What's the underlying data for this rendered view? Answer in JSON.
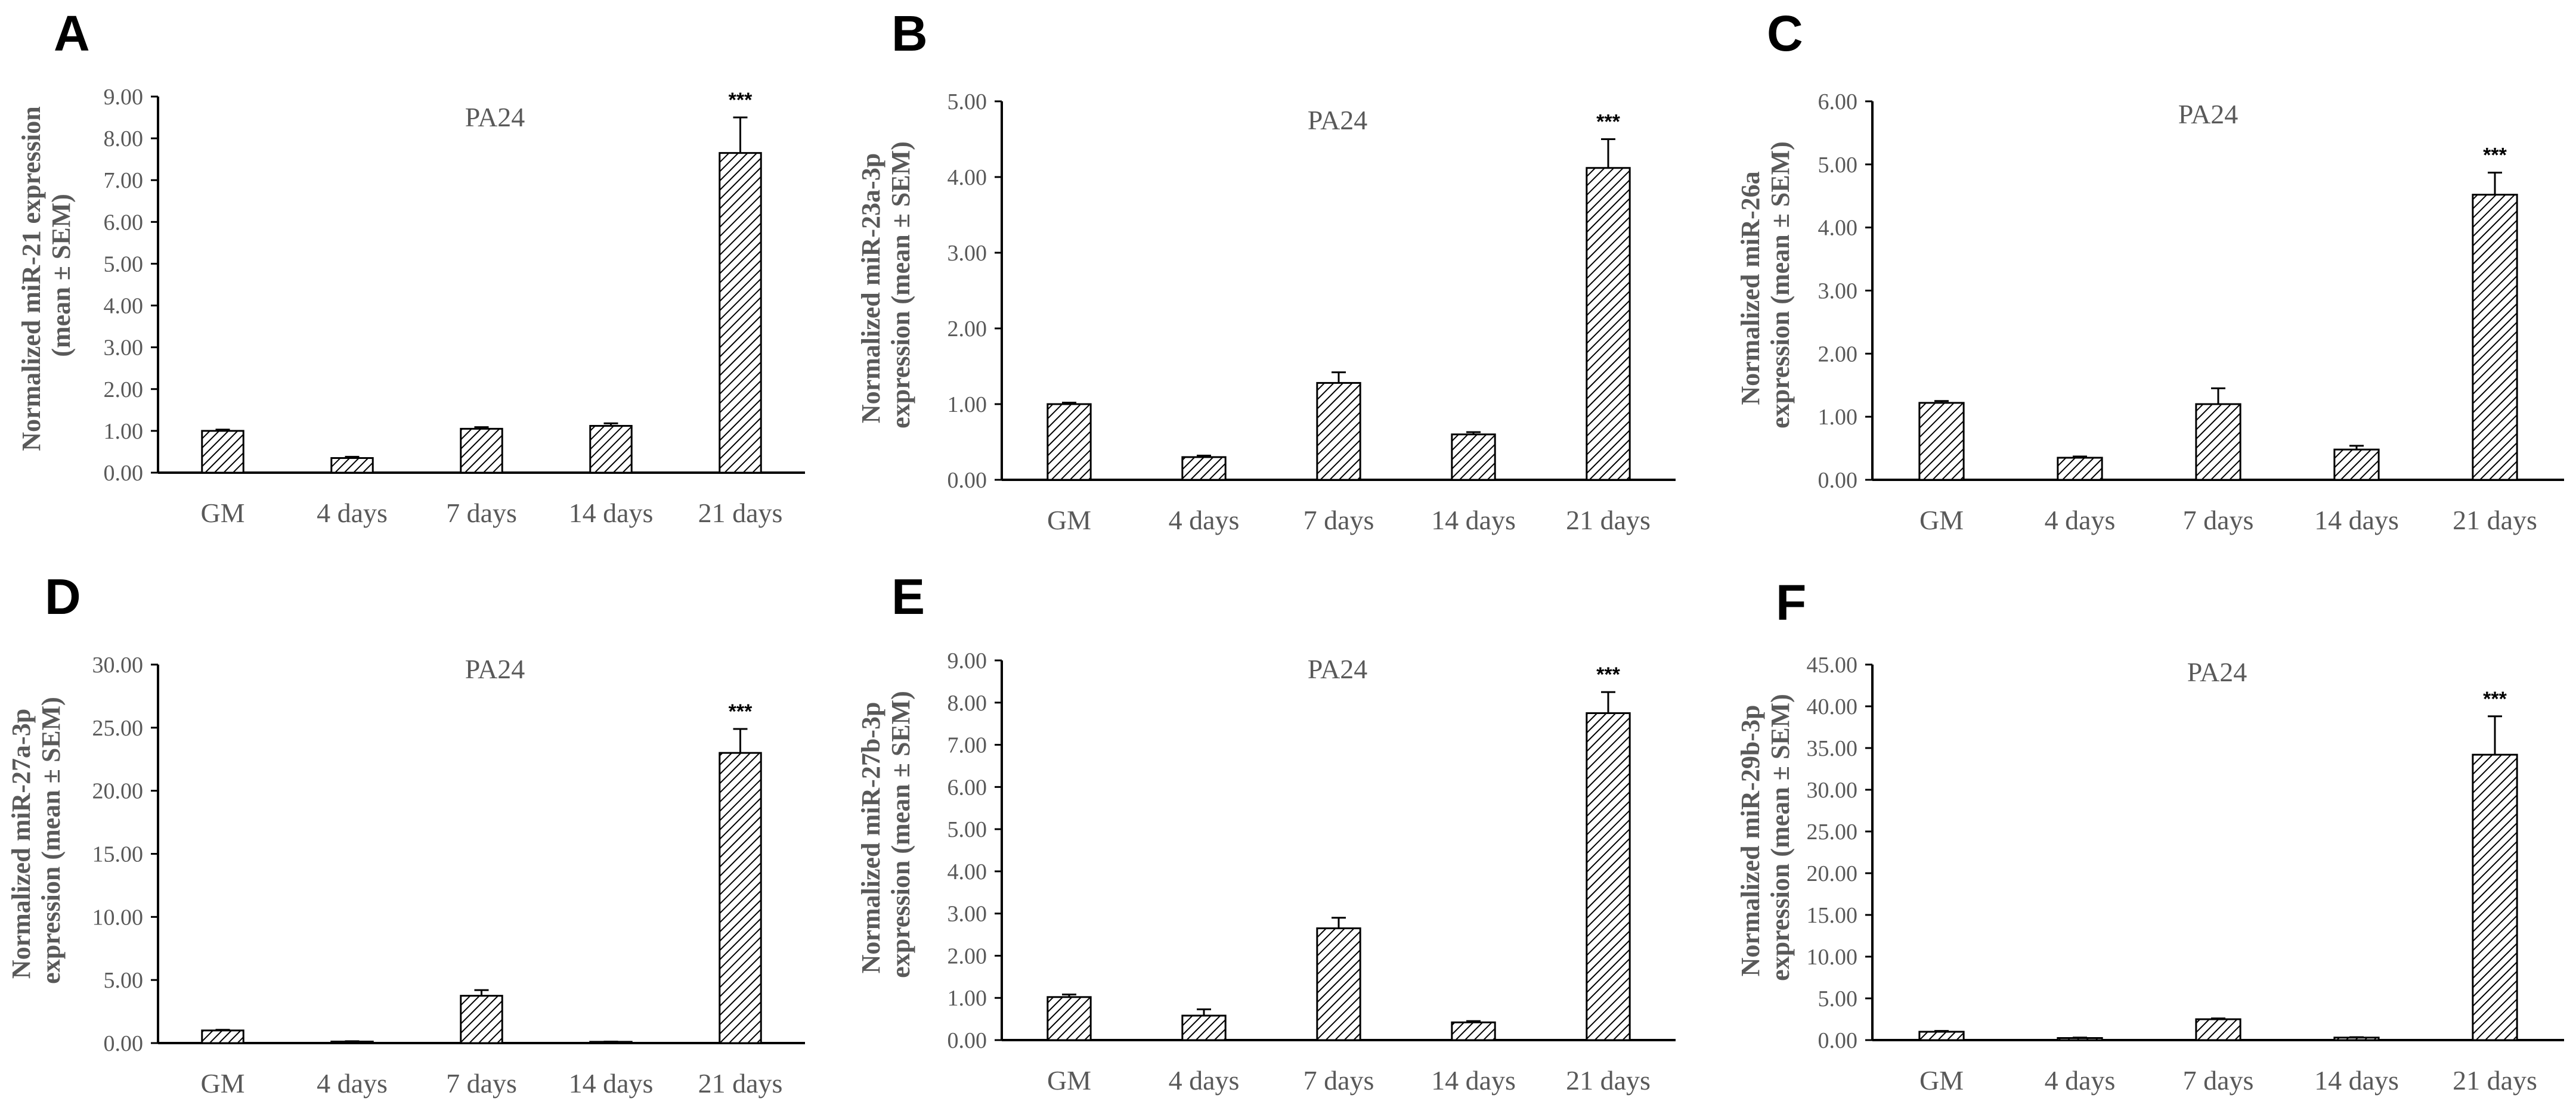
{
  "figure": {
    "panels": [
      "A",
      "B",
      "C",
      "D",
      "E",
      "F"
    ]
  },
  "chart_data": [
    {
      "panel": "A",
      "type": "bar",
      "title": "PA24",
      "ylabel_lines": [
        "Normalized miR-21 expression",
        "(mean ± SEM)"
      ],
      "xlabel": "",
      "categories": [
        "GM",
        "4 days",
        "7 days",
        "14 days",
        "21 days"
      ],
      "values": [
        1.0,
        0.35,
        1.05,
        1.12,
        7.65
      ],
      "errors": [
        0.03,
        0.03,
        0.04,
        0.06,
        0.85
      ],
      "significance": [
        "",
        "",
        "",
        "",
        "***"
      ],
      "ylim": [
        0,
        9
      ],
      "ytick_step": 1,
      "ytick_labels": [
        "0.00",
        "1.00",
        "2.00",
        "3.00",
        "4.00",
        "5.00",
        "6.00",
        "7.00",
        "8.00",
        "9.00"
      ],
      "grid": false
    },
    {
      "panel": "B",
      "type": "bar",
      "title": "PA24",
      "ylabel_lines": [
        "Normalized miR-23a-3p",
        "expression (mean ± SEM)"
      ],
      "xlabel": "",
      "categories": [
        "GM",
        "4 days",
        "7 days",
        "14 days",
        "21 days"
      ],
      "values": [
        1.0,
        0.3,
        1.28,
        0.6,
        4.12
      ],
      "errors": [
        0.02,
        0.02,
        0.14,
        0.03,
        0.38
      ],
      "significance": [
        "",
        "",
        "",
        "",
        "***"
      ],
      "ylim": [
        0,
        5
      ],
      "ytick_step": 1,
      "ytick_labels": [
        "0.00",
        "1.00",
        "2.00",
        "3.00",
        "4.00",
        "5.00"
      ],
      "grid": false
    },
    {
      "panel": "C",
      "type": "bar",
      "title": "PA24",
      "ylabel_lines": [
        "Normalized miR-26a",
        "expression (mean ± SEM)"
      ],
      "xlabel": "",
      "categories": [
        "GM",
        "4 days",
        "7 days",
        "14 days",
        "21 days"
      ],
      "values": [
        1.22,
        0.35,
        1.2,
        0.48,
        4.52
      ],
      "errors": [
        0.03,
        0.02,
        0.25,
        0.06,
        0.35
      ],
      "significance": [
        "",
        "",
        "",
        "",
        "***"
      ],
      "ylim": [
        0,
        6
      ],
      "ytick_step": 1,
      "ytick_labels": [
        "0.00",
        "1.00",
        "2.00",
        "3.00",
        "4.00",
        "5.00",
        "6.00"
      ],
      "grid": false
    },
    {
      "panel": "D",
      "type": "bar",
      "title": "PA24",
      "ylabel_lines": [
        "Normalized miR-27a-3p",
        "expression (mean ± SEM)"
      ],
      "xlabel": "",
      "categories": [
        "GM",
        "4 days",
        "7 days",
        "14 days",
        "21 days"
      ],
      "values": [
        1.0,
        0.12,
        3.75,
        0.1,
        23.0
      ],
      "errors": [
        0.05,
        0.03,
        0.45,
        0.02,
        1.9
      ],
      "significance": [
        "",
        "",
        "",
        "",
        "***"
      ],
      "ylim": [
        0,
        30
      ],
      "ytick_step": 5,
      "ytick_labels": [
        "0.00",
        "5.00",
        "10.00",
        "15.00",
        "20.00",
        "25.00",
        "30.00"
      ],
      "grid": false
    },
    {
      "panel": "E",
      "type": "bar",
      "title": "PA24",
      "ylabel_lines": [
        "Normalized miR-27b-3p",
        "expression (mean ± SEM)"
      ],
      "xlabel": "",
      "categories": [
        "GM",
        "4 days",
        "7 days",
        "14 days",
        "21 days"
      ],
      "values": [
        1.02,
        0.58,
        2.65,
        0.42,
        7.75
      ],
      "errors": [
        0.06,
        0.15,
        0.25,
        0.03,
        0.5
      ],
      "significance": [
        "",
        "",
        "",
        "",
        "***"
      ],
      "ylim": [
        0,
        9
      ],
      "ytick_step": 1,
      "ytick_labels": [
        "0.00",
        "1.00",
        "2.00",
        "3.00",
        "4.00",
        "5.00",
        "6.00",
        "7.00",
        "8.00",
        "9.00"
      ],
      "grid": false
    },
    {
      "panel": "F",
      "type": "bar",
      "title": "PA24",
      "ylabel_lines": [
        "Normalized miR-29b-3p",
        "expression (mean ± SEM)"
      ],
      "xlabel": "",
      "categories": [
        "GM",
        "4 days",
        "7 days",
        "14 days",
        "21 days"
      ],
      "values": [
        1.0,
        0.25,
        2.5,
        0.3,
        34.2
      ],
      "errors": [
        0.1,
        0.05,
        0.1,
        0.05,
        4.6
      ],
      "significance": [
        "",
        "",
        "",
        "",
        "***"
      ],
      "ylim": [
        0,
        45
      ],
      "ytick_step": 5,
      "ytick_labels": [
        "0.00",
        "5.00",
        "10.00",
        "15.00",
        "20.00",
        "25.00",
        "30.00",
        "35.00",
        "40.00",
        "45.00"
      ],
      "grid": false
    }
  ]
}
